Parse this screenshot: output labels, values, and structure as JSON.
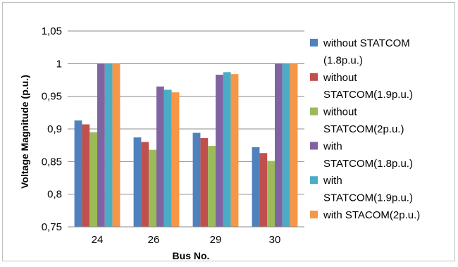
{
  "chart_data": {
    "type": "bar",
    "title": "",
    "xlabel": "Bus No.",
    "ylabel": "Voltage Magnitude (p.u.)",
    "categories": [
      "24",
      "26",
      "29",
      "30"
    ],
    "ylim": [
      0.75,
      1.05
    ],
    "yticks": [
      "0,75",
      "0,8",
      "0,85",
      "0,9",
      "0,95",
      "1",
      "1,05"
    ],
    "ytick_values": [
      0.75,
      0.8,
      0.85,
      0.9,
      0.95,
      1.0,
      1.05
    ],
    "grid": true,
    "legend_position": "right",
    "series": [
      {
        "name": "without STATCOM (1.8p.u.)",
        "legend_lines": [
          "without STATCOM",
          "(1.8p.u.)"
        ],
        "color": "#4f81bd",
        "values": [
          0.913,
          0.887,
          0.894,
          0.872
        ]
      },
      {
        "name": "without STATCOM(1.9p.u.)",
        "legend_lines": [
          "without",
          "STATCOM(1.9p.u.)"
        ],
        "color": "#c0504d",
        "values": [
          0.907,
          0.88,
          0.886,
          0.863
        ]
      },
      {
        "name": "without STATCOM(2p.u.)",
        "legend_lines": [
          "without",
          "STATCOM(2p.u.)"
        ],
        "color": "#9bbb59",
        "values": [
          0.895,
          0.868,
          0.874,
          0.851
        ]
      },
      {
        "name": "with STATCOM(1.8p.u.)",
        "legend_lines": [
          "with",
          "STATCOM(1.8p.u.)"
        ],
        "color": "#8064a2",
        "values": [
          1.0,
          0.965,
          0.983,
          1.0
        ]
      },
      {
        "name": "with STATCOM(1.9p.u.)",
        "legend_lines": [
          "with",
          "STATCOM(1.9p.u.)"
        ],
        "color": "#4bacc6",
        "values": [
          1.0,
          0.96,
          0.987,
          1.0
        ]
      },
      {
        "name": "with STACOM(2p.u.)",
        "legend_lines": [
          "with STACOM(2p.u.)"
        ],
        "color": "#f79646",
        "values": [
          1.0,
          0.956,
          0.984,
          1.0
        ]
      }
    ]
  }
}
